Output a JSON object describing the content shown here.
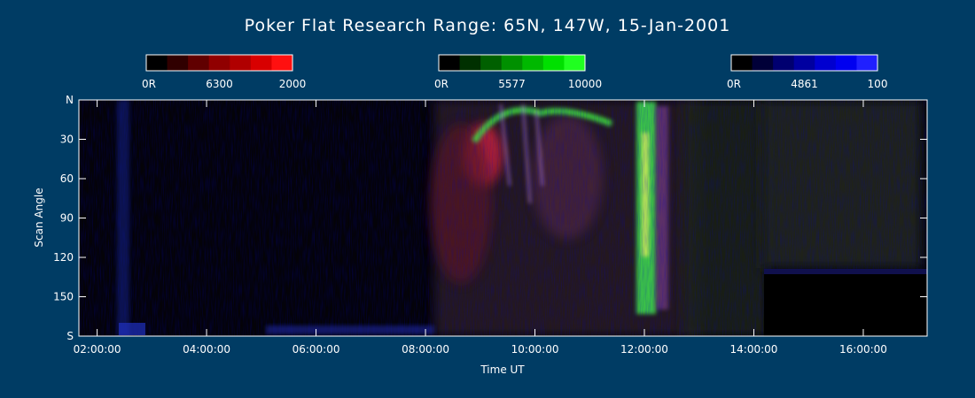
{
  "chart_data": {
    "type": "heatmap",
    "title": "Poker Flat Research Range: 65N, 147W, 15-Jan-2001",
    "xlabel": "Time UT",
    "ylabel": "Scan Angle",
    "xlim": [
      "01:40:00",
      "17:10:00"
    ],
    "x_ticks": [
      "02:00:00",
      "04:00:00",
      "06:00:00",
      "08:00:00",
      "10:00:00",
      "12:00:00",
      "14:00:00",
      "16:00:00"
    ],
    "ylim": [
      0,
      180
    ],
    "y_ticks": [
      "N",
      "30",
      "60",
      "90",
      "120",
      "150",
      "S"
    ],
    "colorbars": [
      {
        "name": "6300",
        "min_label": "0R",
        "max_label": "2000",
        "colors": [
          "#000000",
          "#300000",
          "#600000",
          "#900000",
          "#b00000",
          "#d80000",
          "#ff1010"
        ]
      },
      {
        "name": "5577",
        "min_label": "0R",
        "max_label": "10000",
        "colors": [
          "#000000",
          "#003000",
          "#006000",
          "#009000",
          "#00b800",
          "#00e000",
          "#20ff20"
        ]
      },
      {
        "name": "4861",
        "min_label": "0R",
        "max_label": "100",
        "colors": [
          "#000000",
          "#000038",
          "#000070",
          "#0000a0",
          "#0000d0",
          "#0000f0",
          "#2020ff"
        ]
      }
    ],
    "features": [
      {
        "kind": "red_arc",
        "x_range": [
          "08:40:00",
          "09:10:00"
        ],
        "y_range": [
          25,
          60
        ]
      },
      {
        "kind": "green_band",
        "x_range": [
          "11:35:00",
          "12:05:00"
        ],
        "y_range": [
          5,
          150
        ]
      },
      {
        "kind": "no_data",
        "x_range": [
          "14:05:00",
          "17:10:00"
        ],
        "y_range": [
          125,
          180
        ]
      }
    ]
  }
}
